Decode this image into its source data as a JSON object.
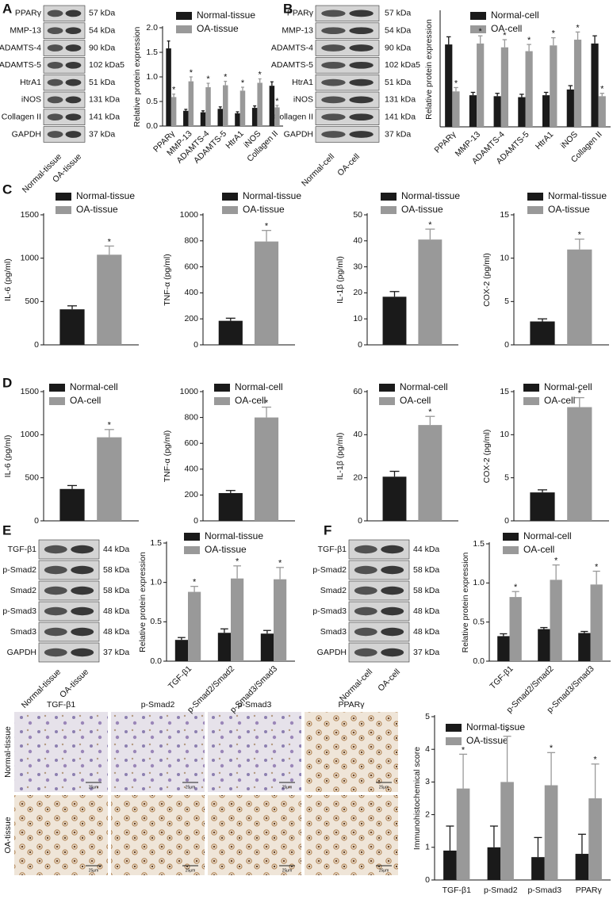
{
  "panels": [
    "A",
    "B",
    "C",
    "D",
    "E",
    "F"
  ],
  "blots": [
    {
      "rows": [
        {
          "protein": "PPARγ",
          "kda": "57 kDa"
        },
        {
          "protein": "MMP-13",
          "kda": "54 kDa"
        },
        {
          "protein": "ADAMTS-4",
          "kda": "90 kDa"
        },
        {
          "protein": "ADAMTS-5",
          "kda": "102 kDa5"
        },
        {
          "protein": "HtrA1",
          "kda": "51 kDa"
        },
        {
          "protein": "iNOS",
          "kda": "131 kDa"
        },
        {
          "protein": "Collagen II",
          "kda": "141 kDa"
        },
        {
          "protein": "GAPDH",
          "kda": "37 kDa"
        }
      ],
      "lanes": [
        "Normal-tissue",
        "OA-tissue"
      ]
    },
    {
      "rows": [
        {
          "protein": "PPARγ",
          "kda": "57 kDa"
        },
        {
          "protein": "MMP-13",
          "kda": "54 kDa"
        },
        {
          "protein": "ADAMTS-4",
          "kda": "90 kDa"
        },
        {
          "protein": "ADAMTS-5",
          "kda": "102 kDa5"
        },
        {
          "protein": "HtrA1",
          "kda": "51 kDa"
        },
        {
          "protein": "iNOS",
          "kda": "131 kDa"
        },
        {
          "protein": "Collagen II",
          "kda": "141 kDa"
        },
        {
          "protein": "GAPDH",
          "kda": "37 kDa"
        }
      ],
      "lanes": [
        "Normal-cell",
        "OA-cell"
      ]
    },
    {
      "rows": [
        {
          "protein": "TGF-β1",
          "kda": "44 kDa"
        },
        {
          "protein": "p-Smad2",
          "kda": "58 kDa"
        },
        {
          "protein": "Smad2",
          "kda": "58 kDa"
        },
        {
          "protein": "p-Smad3",
          "kda": "48 kDa"
        },
        {
          "protein": "Smad3",
          "kda": "48 kDa"
        },
        {
          "protein": "GAPDH",
          "kda": "37 kDa"
        }
      ],
      "lanes": [
        "Normal-tissue",
        "OA-tissue"
      ]
    },
    {
      "rows": [
        {
          "protein": "TGF-β1",
          "kda": "44 kDa"
        },
        {
          "protein": "p-Smad2",
          "kda": "58 kDa"
        },
        {
          "protein": "Smad2",
          "kda": "58 kDa"
        },
        {
          "protein": "p-Smad3",
          "kda": "48 kDa"
        },
        {
          "protein": "Smad3",
          "kda": "48 kDa"
        },
        {
          "protein": "GAPDH",
          "kda": "37 kDa"
        }
      ],
      "lanes": [
        "Normal-cell",
        "OA-cell"
      ]
    }
  ],
  "ihc": {
    "columns": [
      "TGF-β1",
      "p-Smad2",
      "p-Smad3",
      "PPARγ"
    ],
    "rows": [
      "Normal-tissue",
      "OA-tissue"
    ],
    "scale_bar": "25μm"
  },
  "chart_data": [
    {
      "type": "bar",
      "ylabel": "Relative protein expression",
      "categories": [
        "PPARγ",
        "MMP-13",
        "ADAMTS-4",
        "ADAMTS-5",
        "HtrA1",
        "iNOS",
        "Collagen II"
      ],
      "series": [
        {
          "name": "Normal-tissue",
          "color": "#1a1a1a",
          "values": [
            1.58,
            0.31,
            0.28,
            0.35,
            0.26,
            0.37,
            0.82
          ],
          "errors": [
            0.15,
            0.03,
            0.03,
            0.04,
            0.03,
            0.04,
            0.08
          ]
        },
        {
          "name": "OA-tissue",
          "color": "#999999",
          "values": [
            0.59,
            0.91,
            0.79,
            0.83,
            0.72,
            0.88,
            0.38
          ],
          "errors": [
            0.06,
            0.09,
            0.08,
            0.08,
            0.07,
            0.08,
            0.04
          ],
          "markers": [
            "*",
            "*",
            "*",
            "*",
            "*",
            "*",
            "*"
          ]
        }
      ],
      "ylim": [
        0,
        2
      ],
      "yticks": [
        {
          "value": 0,
          "label": "0.0"
        },
        0.5,
        {
          "value": 1,
          "label": "1.0"
        },
        1.5,
        {
          "value": 2,
          "label": "2.0"
        }
      ]
    },
    {
      "type": "bar",
      "ylabel": "Relative protein expression",
      "categories": [
        "PPARγ",
        "MMP-13",
        "ADAMTS-4",
        "ADAMTS-5",
        "HtrA1",
        "iNOS",
        "Collagen II"
      ],
      "series": [
        {
          "name": "Normal-cell",
          "color": "#1a1a1a",
          "values": [
            0.86,
            0.33,
            0.32,
            0.31,
            0.33,
            0.39,
            0.87
          ],
          "errors": [
            0.08,
            0.03,
            0.03,
            0.03,
            0.03,
            0.04,
            0.08
          ]
        },
        {
          "name": "OA-cell",
          "color": "#999999",
          "values": [
            0.37,
            0.87,
            0.83,
            0.79,
            0.85,
            0.91,
            0.32
          ],
          "errors": [
            0.04,
            0.08,
            0.08,
            0.07,
            0.08,
            0.08,
            0.03
          ],
          "markers": [
            "*",
            "*",
            "*",
            "*",
            "*",
            "*",
            "*"
          ]
        }
      ],
      "ylim": [
        0,
        1.2
      ]
    },
    {
      "type": "bar",
      "ylabel": "IL-6 (pg/ml)",
      "series": [
        {
          "name": "Normal-tissue",
          "color": "#1a1a1a",
          "values": [
            410
          ],
          "errors": [
            40
          ]
        },
        {
          "name": "OA-tissue",
          "color": "#999999",
          "values": [
            1040
          ],
          "errors": [
            100
          ],
          "markers": [
            "*"
          ]
        }
      ],
      "ylim": [
        0,
        1500
      ],
      "yticks": [
        0,
        500,
        1000,
        1500
      ]
    },
    {
      "type": "bar",
      "ylabel": "TNF-α (pg/ml)",
      "series": [
        {
          "name": "Normal-tissue",
          "color": "#1a1a1a",
          "values": [
            185
          ],
          "errors": [
            20
          ]
        },
        {
          "name": "OA-tissue",
          "color": "#999999",
          "values": [
            795
          ],
          "errors": [
            85
          ],
          "markers": [
            "*"
          ]
        }
      ],
      "ylim": [
        0,
        1000
      ],
      "yticks": [
        0,
        200,
        400,
        600,
        800,
        1000
      ]
    },
    {
      "type": "bar",
      "ylabel": "IL-1β (pg/ml)",
      "series": [
        {
          "name": "Normal-tissue",
          "color": "#1a1a1a",
          "values": [
            18.5
          ],
          "errors": [
            2
          ]
        },
        {
          "name": "OA-tissue",
          "color": "#999999",
          "values": [
            40.5
          ],
          "errors": [
            4
          ],
          "markers": [
            "*"
          ]
        }
      ],
      "ylim": [
        0,
        50
      ],
      "yticks": [
        0,
        10,
        20,
        30,
        40,
        50
      ]
    },
    {
      "type": "bar",
      "ylabel": "COX-2 (pg/ml)",
      "series": [
        {
          "name": "Normal-tissue",
          "color": "#1a1a1a",
          "values": [
            2.7
          ],
          "errors": [
            0.3
          ]
        },
        {
          "name": "OA-tissue",
          "color": "#999999",
          "values": [
            11
          ],
          "errors": [
            1.2
          ],
          "markers": [
            "*"
          ]
        }
      ],
      "ylim": [
        0,
        15
      ],
      "yticks": [
        0,
        5,
        10,
        15
      ]
    },
    {
      "type": "bar",
      "ylabel": "IL-6 (pg/ml)",
      "series": [
        {
          "name": "Normal-cell",
          "color": "#1a1a1a",
          "values": [
            370
          ],
          "errors": [
            40
          ]
        },
        {
          "name": "OA-cell",
          "color": "#999999",
          "values": [
            970
          ],
          "errors": [
            90
          ],
          "markers": [
            "*"
          ]
        }
      ],
      "ylim": [
        0,
        1500
      ],
      "yticks": [
        0,
        500,
        1000,
        1500
      ]
    },
    {
      "type": "bar",
      "ylabel": "TNF-α (pg/ml)",
      "series": [
        {
          "name": "Normal-cell",
          "color": "#1a1a1a",
          "values": [
            215
          ],
          "errors": [
            20
          ]
        },
        {
          "name": "OA-cell",
          "color": "#999999",
          "values": [
            800
          ],
          "errors": [
            80
          ],
          "markers": [
            "*"
          ]
        }
      ],
      "ylim": [
        0,
        1000
      ],
      "yticks": [
        0,
        200,
        400,
        600,
        800,
        1000
      ]
    },
    {
      "type": "bar",
      "ylabel": "IL-1β (pg/ml)",
      "series": [
        {
          "name": "Normal-cell",
          "color": "#1a1a1a",
          "values": [
            20.5
          ],
          "errors": [
            2.5
          ]
        },
        {
          "name": "OA-cell",
          "color": "#999999",
          "values": [
            44.5
          ],
          "errors": [
            4
          ],
          "markers": [
            "*"
          ]
        }
      ],
      "ylim": [
        0,
        60
      ],
      "yticks": [
        0,
        20,
        40,
        60
      ]
    },
    {
      "type": "bar",
      "ylabel": "COX-2 (pg/ml)",
      "series": [
        {
          "name": "Normal-cell",
          "color": "#1a1a1a",
          "values": [
            3.3
          ],
          "errors": [
            0.3
          ]
        },
        {
          "name": "OA-cell",
          "color": "#999999",
          "values": [
            13.2
          ],
          "errors": [
            1.1
          ],
          "markers": [
            "*"
          ]
        }
      ],
      "ylim": [
        0,
        15
      ],
      "yticks": [
        0,
        5,
        10,
        15
      ]
    },
    {
      "type": "bar",
      "ylabel": "Relative protein expression",
      "categories": [
        "TGF-β1",
        "p-Smad2/Smad2",
        "p-Smad3/Smad3"
      ],
      "series": [
        {
          "name": "Normal-tissue",
          "color": "#1a1a1a",
          "values": [
            0.27,
            0.36,
            0.35
          ],
          "errors": [
            0.03,
            0.05,
            0.04
          ]
        },
        {
          "name": "OA-tissue",
          "color": "#999999",
          "values": [
            0.88,
            1.05,
            1.04
          ],
          "errors": [
            0.07,
            0.16,
            0.15
          ],
          "markers": [
            "*",
            "*",
            "*"
          ]
        }
      ],
      "ylim": [
        0,
        1.5
      ],
      "yticks": [
        {
          "value": 0,
          "label": "0.0"
        },
        0.5,
        {
          "value": 1,
          "label": "1.0"
        },
        1.5
      ]
    },
    {
      "type": "bar",
      "ylabel": "Relative protein expression",
      "categories": [
        "TGF-β1",
        "p-Smad2/Smad2",
        "p-Smad3/Smad3"
      ],
      "series": [
        {
          "name": "Normal-cell",
          "color": "#1a1a1a",
          "values": [
            0.32,
            0.41,
            0.36
          ],
          "errors": [
            0.03,
            0.02,
            0.02
          ]
        },
        {
          "name": "OA-cell",
          "color": "#999999",
          "values": [
            0.82,
            1.04,
            0.98
          ],
          "errors": [
            0.07,
            0.19,
            0.17
          ],
          "markers": [
            "*",
            "*",
            "*"
          ]
        }
      ],
      "ylim": [
        0,
        1.5
      ],
      "yticks": [
        {
          "value": 0,
          "label": "0.0"
        },
        0.5,
        {
          "value": 1,
          "label": "1.0"
        },
        1.5
      ]
    },
    {
      "type": "bar",
      "ylabel": "Immunohistochemical score",
      "categories": [
        "TGF-β1",
        "p-Smad2",
        "p-Smad3",
        "PPARγ"
      ],
      "series": [
        {
          "name": "Normal-tissue",
          "color": "#1a1a1a",
          "values": [
            0.9,
            1.0,
            0.7,
            0.8
          ],
          "errors": [
            0.75,
            0.65,
            0.6,
            0.6
          ]
        },
        {
          "name": "OA-tissue",
          "color": "#999999",
          "values": [
            2.8,
            3.0,
            2.9,
            2.5
          ],
          "errors": [
            1.05,
            1.4,
            1.0,
            1.05
          ],
          "markers": [
            "*",
            "*",
            "*",
            "*"
          ]
        }
      ],
      "ylim": [
        0,
        5
      ],
      "yticks": [
        0,
        1,
        2,
        3,
        4,
        5
      ]
    }
  ]
}
